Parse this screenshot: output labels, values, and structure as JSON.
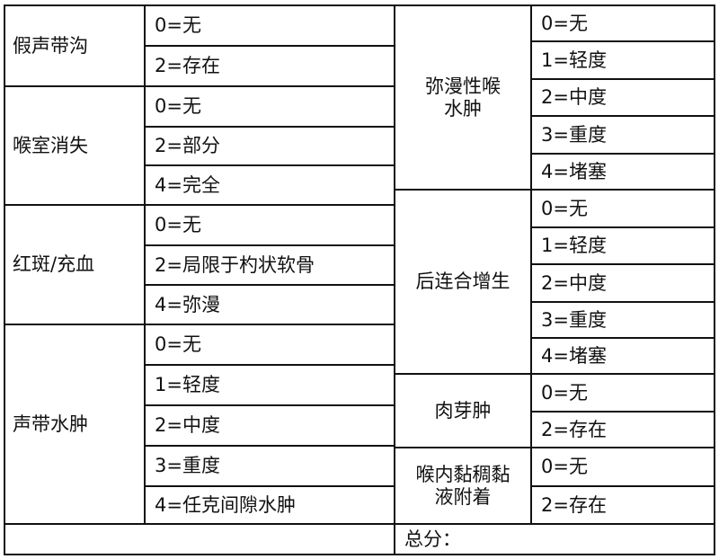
{
  "left_groups": [
    {
      "label": "假声带沟",
      "options": [
        "0=无",
        "2=存在"
      ]
    },
    {
      "label": "喉室消失",
      "options": [
        "0=无",
        "2=部分",
        "4=完全"
      ]
    },
    {
      "label": "红斑/充血",
      "options": [
        "0=无",
        "2=局限于杓状软骨",
        "4=弥漫"
      ]
    },
    {
      "label": "声带水肿",
      "options": [
        "0=无",
        "1=轻度",
        "2=中度",
        "3=重度",
        "4=任克间隙水肿"
      ]
    }
  ],
  "right_groups": [
    {
      "label": "弥漫性喉\n水肿",
      "options": [
        "0=无",
        "1=轻度",
        "2=中度",
        "3=重度",
        "4=堵塞"
      ]
    },
    {
      "label": "后连合增生",
      "options": [
        "0=无",
        "1=轻度",
        "2=中度",
        "3=重度",
        "4=堵塞"
      ]
    },
    {
      "label": "肉芽肿",
      "options": [
        "0=无",
        "2=存在"
      ]
    },
    {
      "label": "喉内黏稠黏\n液附着",
      "options": [
        "0=无",
        "2=存在"
      ]
    }
  ],
  "footer": {
    "total_label": "总分："
  }
}
